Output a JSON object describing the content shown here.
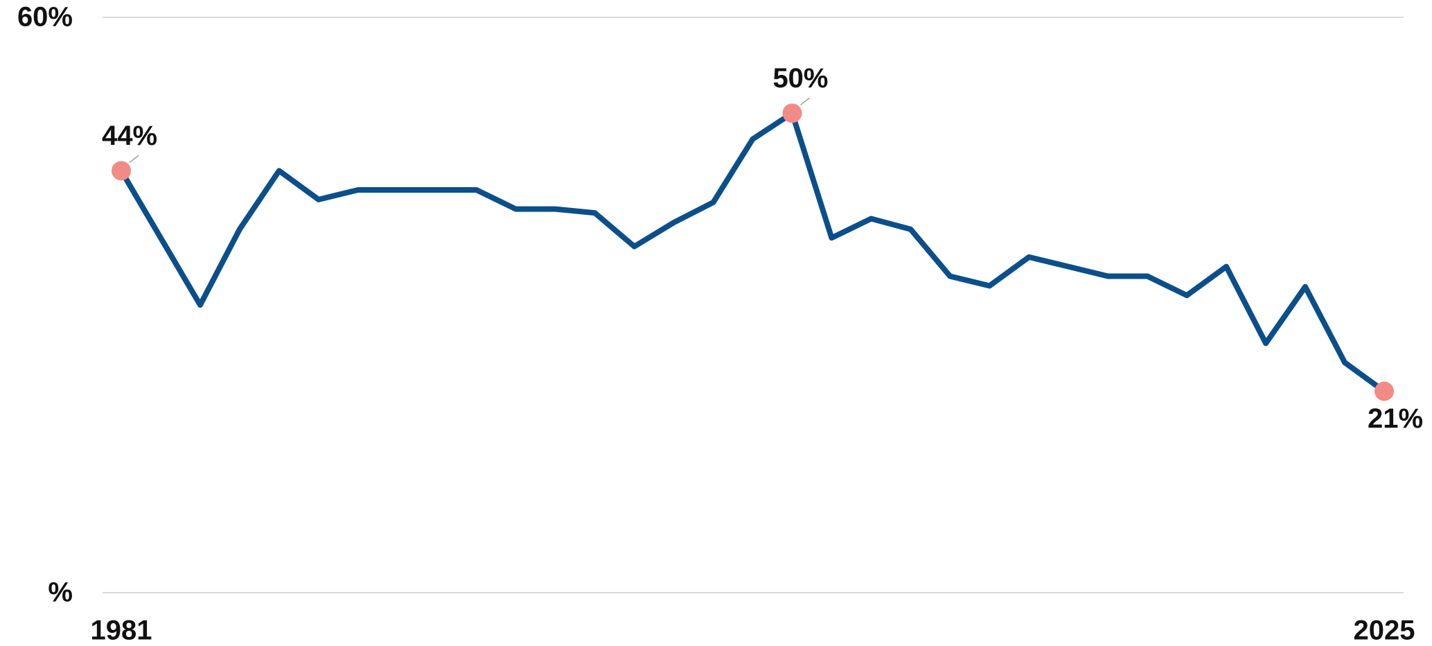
{
  "chart_data": {
    "type": "line",
    "categories": [
      "1981",
      null,
      null,
      null,
      null,
      null,
      null,
      null,
      null,
      null,
      null,
      null,
      null,
      null,
      null,
      null,
      null,
      null,
      null,
      null,
      null,
      null,
      null,
      null,
      null,
      null,
      null,
      null,
      null,
      null,
      null,
      null,
      "2025"
    ],
    "series": [
      {
        "color": "#0b4f8a",
        "highlight_color": "#f28b86",
        "values": [
          44,
          37,
          30,
          37.9,
          44,
          41,
          42,
          42,
          42,
          42,
          40,
          40,
          39.6,
          36.1,
          38.6,
          40.7,
          47.3,
          50,
          37,
          39,
          37.9,
          33,
          32,
          35,
          34,
          33,
          33,
          31,
          34,
          26,
          31.9,
          24,
          21
        ],
        "value_labels": [
          "44%",
          null,
          null,
          null,
          null,
          null,
          null,
          null,
          null,
          null,
          null,
          null,
          null,
          null,
          null,
          null,
          null,
          "50%",
          null,
          null,
          null,
          null,
          null,
          null,
          null,
          null,
          null,
          null,
          null,
          null,
          null,
          null,
          "21%"
        ]
      }
    ],
    "ylim": [
      0,
      60
    ],
    "yticks": [
      {
        "value": 0,
        "label": "%"
      },
      {
        "value": 60,
        "label": "60%"
      }
    ],
    "grid": true
  }
}
